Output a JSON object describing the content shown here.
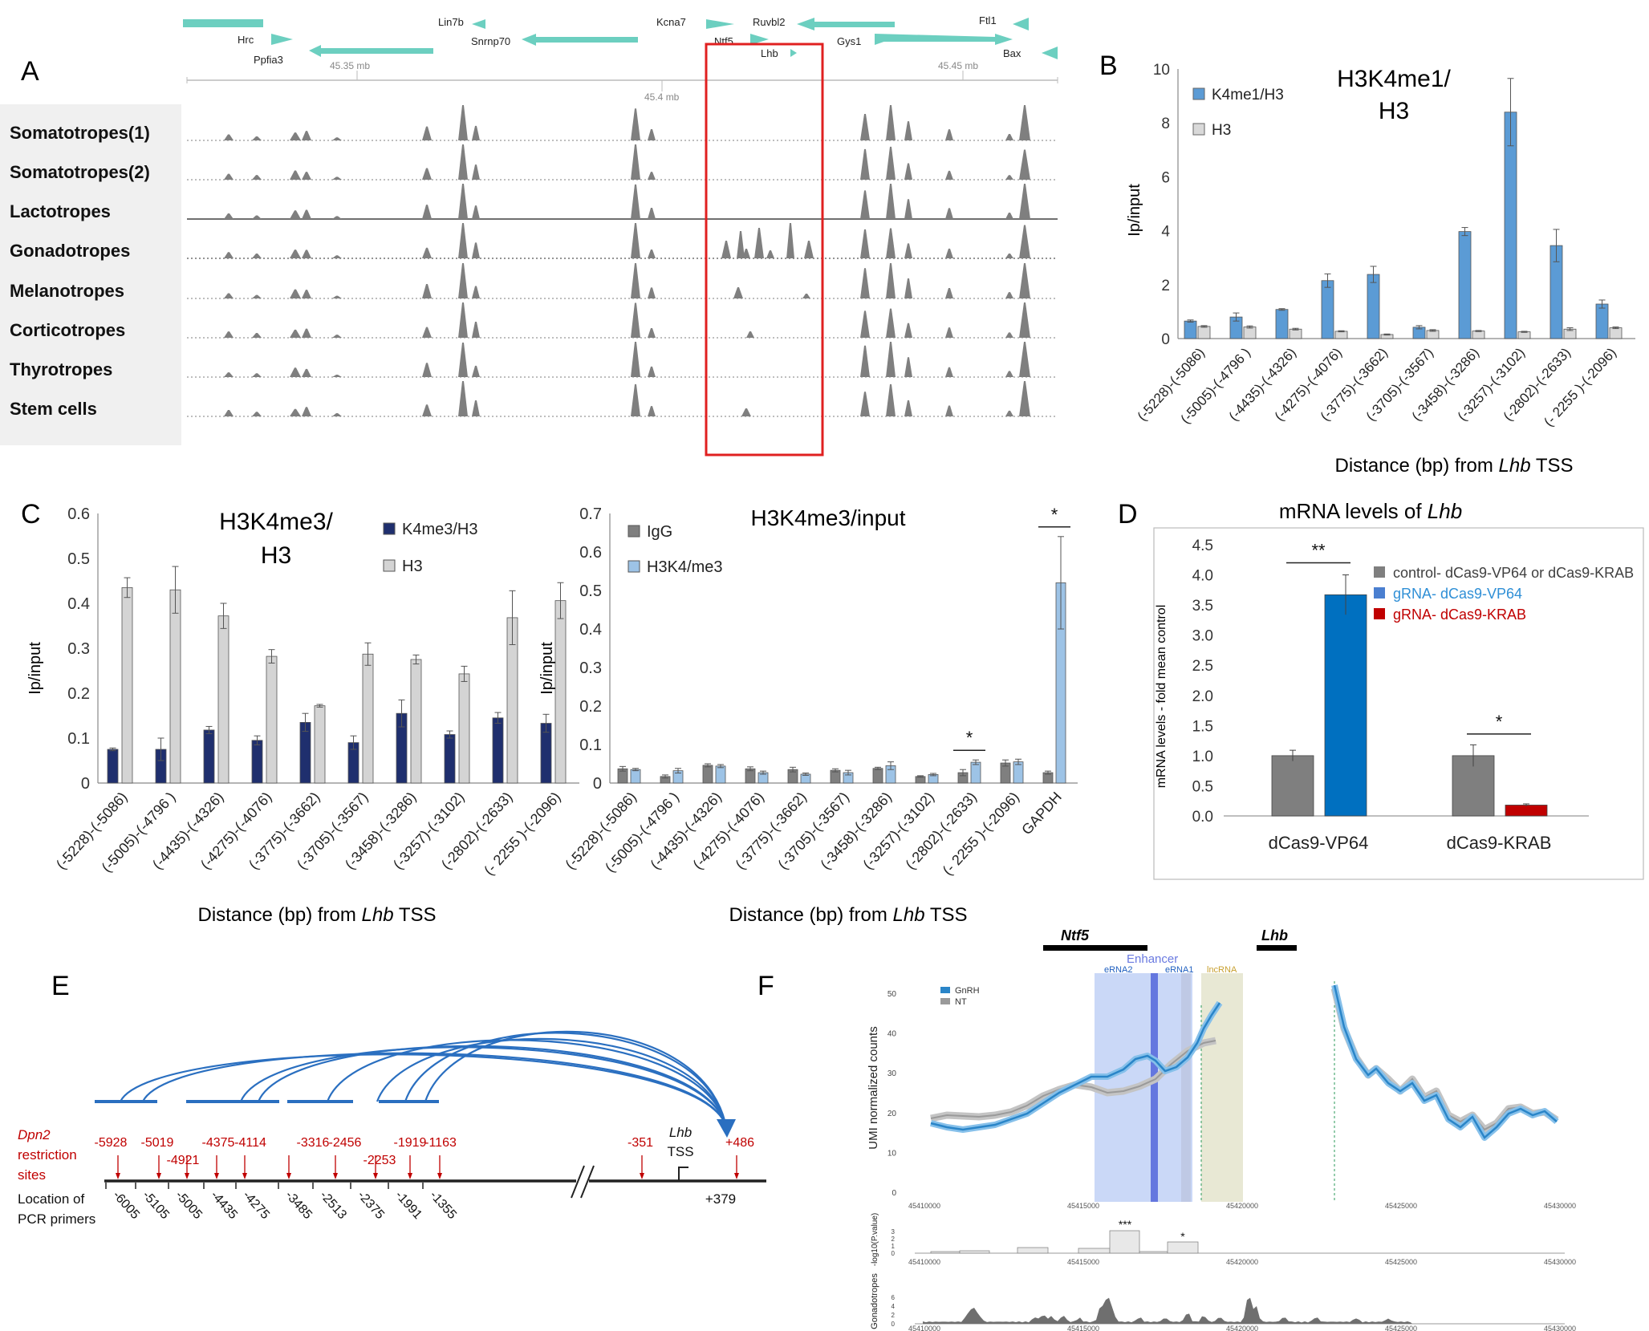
{
  "panels": {
    "A": {
      "letter": "A",
      "genes": {
        "Hrc": "Hrc",
        "Ppfia3": "Ppfia3",
        "Lin7b": "Lin7b",
        "Snrnp70": "Snrnp70",
        "Kcna7": "Kcna7",
        "Ntf5": "Ntf5",
        "Ruvbl2": "Ruvbl2",
        "Lhb": "Lhb",
        "Gys1": "Gys1",
        "Ftl1": "Ftl1",
        "Bax": "Bax"
      },
      "coords": [
        "45.35 mb",
        "45.4 mb",
        "45.45 mb"
      ],
      "tracks": [
        "Somatotropes(1)",
        "Somatotropes(2)",
        "Lactotropes",
        "Gonadotropes",
        "Melanotropes",
        "Corticotropes",
        "Thyrotropes",
        "Stem cells"
      ],
      "colors": {
        "gene": "#6ccfc0",
        "track": "#7f7f7f",
        "highlight": "#e02020",
        "label_bg": "#f0f0f0"
      }
    },
    "B": {
      "letter": "B",
      "xlabel_pre": "Distance (bp) from ",
      "xlabel_gene": "Lhb",
      "xlabel_post": " TSS",
      "ylabel": "Ip/input",
      "title_line1": "H3K4me1/",
      "title_line2": "H3"
    },
    "C": {
      "letter": "C",
      "left": {
        "title_line1": "H3K4me3/",
        "title_line2": "H3",
        "ylabel": "Ip/input"
      },
      "right": {
        "title": "H3K4me3/input",
        "ylabel": "Ip/input"
      },
      "xlabel_pre": "Distance (bp) from ",
      "xlabel_gene": "Lhb",
      "xlabel_post": " TSS"
    },
    "D": {
      "letter": "D",
      "title_pre": "mRNA levels of ",
      "title_gene": "Lhb",
      "ylabel": "mRNA levels - fold mean control"
    },
    "E": {
      "letter": "E",
      "dpn2_line1": "Dpn2",
      "dpn2_line2": "restriction",
      "dpn2_line3": "sites",
      "loc_line1": "Location of",
      "loc_line2": "PCR primers",
      "restriction_labels": [
        "-5928",
        "-5019",
        "-4921",
        "-4375",
        "-4114",
        "-3316",
        "-2456",
        "-2253",
        "-1919",
        "-1163",
        "-351",
        "+486"
      ],
      "primer_labels": [
        "-6005",
        "-5105",
        "-5005",
        "-4435",
        "-4275",
        "-3485",
        "-2513",
        "-2375",
        "-1991",
        "-1355"
      ],
      "tss_gene": "Lhb",
      "tss_label": "TSS",
      "tss_pos": "+379"
    },
    "F": {
      "letter": "F",
      "genes": {
        "ntf5": "Ntf5",
        "lhb": "Lhb"
      },
      "regions": {
        "enhancer": "Enhancer",
        "erna2": "eRNA2",
        "erna1": "eRNA1",
        "lncrna": "lncRNA"
      },
      "legend": {
        "gnrh": "GnRH",
        "nt": "NT"
      },
      "ylabel_main": "UMI normalized counts",
      "ylabel_p": "-log10(P.value)",
      "ylabel_g": "Gonadotropes",
      "main_yticks": [
        "0",
        "10",
        "20",
        "30",
        "40",
        "50"
      ],
      "p_yticks": [
        "0",
        "1",
        "2",
        "3"
      ],
      "g_yticks": [
        "0",
        "2",
        "4",
        "6"
      ],
      "xticks": [
        "45410000",
        "45415000",
        "45420000",
        "45425000",
        "45430000"
      ],
      "stars": {
        "s3": "***",
        "s1": "*"
      },
      "colors": {
        "gnrh": "#2a85c8",
        "nt": "#9a9a9a",
        "enhancer": "#4a5fd8",
        "erna2_band": "#9fb8f0",
        "lncrna_band": "#d8d8b8"
      }
    }
  },
  "chart_data": [
    {
      "panel": "B",
      "type": "bar",
      "title": "H3K4me1/ H3",
      "xlabel": "Distance (bp) from Lhb TSS",
      "ylabel": "Ip/input",
      "ylim": [
        0,
        10
      ],
      "yticks": [
        "0",
        "2",
        "4",
        "6",
        "8",
        "10"
      ],
      "categories": [
        "(-5228)-(-5086)",
        "(-5005)-(-4796 )",
        "(-4435)-(-4326)",
        "(-4275)-(-4076)",
        "(-3775)-(-3662)",
        "(-3705)-(-3567)",
        "(-3458)-(-3286)",
        "(-3257)-(-3102)",
        "(-2802)-(-2633)",
        "(- 2255 )-(-2096)"
      ],
      "series": [
        {
          "name": "K4me1/H3",
          "color": "#5b9bd5",
          "values": [
            0.65,
            0.8,
            1.08,
            2.15,
            2.38,
            0.42,
            3.97,
            8.4,
            3.45,
            1.28
          ],
          "errors": [
            0.04,
            0.15,
            0.03,
            0.25,
            0.3,
            0.06,
            0.15,
            1.25,
            0.6,
            0.15
          ]
        },
        {
          "name": "H3",
          "color": "#d9d9d9",
          "values": [
            0.45,
            0.43,
            0.35,
            0.27,
            0.15,
            0.3,
            0.28,
            0.25,
            0.35,
            0.4
          ],
          "errors": [
            0.03,
            0.04,
            0.03,
            0.02,
            0.02,
            0.03,
            0.02,
            0.02,
            0.05,
            0.03
          ]
        }
      ]
    },
    {
      "panel": "C-left",
      "type": "bar",
      "title": "H3K4me3/ H3",
      "xlabel": "Distance (bp) from Lhb TSS",
      "ylabel": "Ip/input",
      "ylim": [
        0,
        0.6
      ],
      "yticks": [
        "0",
        "0.1",
        "0.2",
        "0.3",
        "0.4",
        "0.5",
        "0.6"
      ],
      "categories": [
        "(-5228)-(-5086)",
        "(-5005)-(-4796 )",
        "(-4435)-(-4326)",
        "(-4275)-(-4076)",
        "(-3775)-(-3662)",
        "(-3705)-(-3567)",
        "(-3458)-(-3286)",
        "(-3257)-(-3102)",
        "(-2802)-(-2633)",
        "(- 2255 )-(-2096)"
      ],
      "series": [
        {
          "name": "K4me3/H3",
          "color": "#1f2f6e",
          "values": [
            0.075,
            0.075,
            0.118,
            0.095,
            0.135,
            0.09,
            0.155,
            0.108,
            0.145,
            0.133
          ],
          "errors": [
            0.003,
            0.025,
            0.008,
            0.01,
            0.02,
            0.015,
            0.03,
            0.008,
            0.012,
            0.02
          ]
        },
        {
          "name": "H3",
          "color": "#d4d4d4",
          "values": [
            0.435,
            0.43,
            0.372,
            0.282,
            0.172,
            0.287,
            0.275,
            0.243,
            0.368,
            0.406
          ],
          "errors": [
            0.022,
            0.052,
            0.028,
            0.015,
            0.003,
            0.025,
            0.01,
            0.017,
            0.06,
            0.04
          ]
        }
      ]
    },
    {
      "panel": "C-right",
      "type": "bar",
      "title": "H3K4me3/input",
      "xlabel": "Distance (bp) from Lhb TSS",
      "ylabel": "Ip/input",
      "ylim": [
        0,
        0.7
      ],
      "yticks": [
        "0",
        "0.1",
        "0.2",
        "0.3",
        "0.4",
        "0.5",
        "0.6",
        "0.7"
      ],
      "categories": [
        "(-5228)-(-5086)",
        "(-5005)-(-4796 )",
        "(-4435)-(-4326)",
        "(-4275)-(-4076)",
        "(-3775)-(-3662)",
        "(-3705)-(-3567)",
        "(-3458)-(-3286)",
        "(-3257)-(-3102)",
        "(-2802)-(-2633)",
        "(- 2255 )-(-2096)",
        "GAPDH"
      ],
      "series": [
        {
          "name": "IgG",
          "color": "#7f7f7f",
          "values": [
            0.037,
            0.017,
            0.046,
            0.037,
            0.035,
            0.033,
            0.038,
            0.017,
            0.027,
            0.052,
            0.027
          ],
          "errors": [
            0.006,
            0.004,
            0.004,
            0.005,
            0.006,
            0.004,
            0.003,
            0.002,
            0.008,
            0.008,
            0.004
          ]
        },
        {
          "name": "H3K4/me3",
          "color": "#9dc3e6",
          "values": [
            0.035,
            0.032,
            0.044,
            0.027,
            0.023,
            0.027,
            0.045,
            0.022,
            0.054,
            0.055,
            0.52
          ],
          "errors": [
            0.003,
            0.006,
            0.004,
            0.004,
            0.003,
            0.006,
            0.01,
            0.003,
            0.006,
            0.007,
            0.12
          ]
        }
      ],
      "annotations": [
        {
          "category": "(-2802)-(-2633)",
          "text": "*"
        },
        {
          "category": "GAPDH",
          "text": "*"
        }
      ]
    },
    {
      "panel": "D",
      "type": "bar",
      "title": "mRNA levels of Lhb",
      "ylabel": "mRNA levels - fold mean control",
      "ylim": [
        0,
        4.5
      ],
      "yticks": [
        "0.0",
        "0.5",
        "1.0",
        "1.5",
        "2.0",
        "2.5",
        "3.0",
        "3.5",
        "4.0",
        "4.5"
      ],
      "categories": [
        "dCas9-VP64",
        "dCas9-KRAB"
      ],
      "legend": [
        {
          "name": "control- dCas9-VP64 or dCas9-KRAB",
          "color": "#7f7f7f",
          "text_color": "#404040"
        },
        {
          "name": "gRNA- dCas9-VP64",
          "color": "#4a7fd0",
          "text_color": "#2f8fd6"
        },
        {
          "name": "gRNA- dCas9-KRAB",
          "color": "#c00000",
          "text_color": "#c00000"
        }
      ],
      "series": [
        {
          "name": "control",
          "color": "#7f7f7f",
          "values": [
            1.0,
            1.0
          ],
          "errors": [
            0.09,
            0.18
          ]
        },
        {
          "name": "gRNA",
          "colors": [
            "#0070c0",
            "#c00000"
          ],
          "values": [
            3.67,
            0.18
          ],
          "errors": [
            0.33,
            0.02
          ]
        }
      ],
      "annotations": [
        {
          "category": "dCas9-VP64",
          "text": "**"
        },
        {
          "category": "dCas9-KRAB",
          "text": "*"
        }
      ]
    }
  ]
}
